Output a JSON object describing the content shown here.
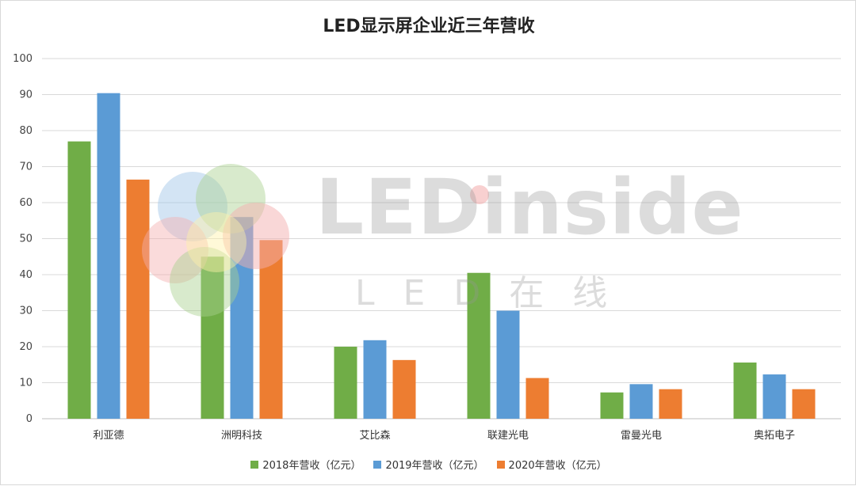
{
  "chart_data": {
    "type": "bar",
    "title": "LED显示屏企业近三年营收",
    "categories": [
      "利亚德",
      "洲明科技",
      "艾比森",
      "联建光电",
      "雷曼光电",
      "奥拓电子"
    ],
    "series": [
      {
        "name": "2018年营收（亿元）",
        "color": "#70ad47",
        "values": [
          77,
          45,
          20,
          40.5,
          7.3,
          15.6
        ]
      },
      {
        "name": "2019年营收（亿元）",
        "color": "#5b9bd5",
        "values": [
          90.4,
          56,
          21.8,
          30,
          9.6,
          12.3
        ]
      },
      {
        "name": "2020年营收（亿元）",
        "color": "#ed7d31",
        "values": [
          66.4,
          49.6,
          16.3,
          11.3,
          8.2,
          8.2
        ]
      }
    ],
    "y_ticks": [
      "0",
      "10",
      "20",
      "30",
      "40",
      "50",
      "60",
      "70",
      "80",
      "90",
      "100"
    ],
    "ylim": [
      0,
      100
    ],
    "grid": true,
    "legend_position": "bottom"
  },
  "watermark": {
    "logo_text": "LEDinside",
    "sub_text": "LED在线"
  }
}
